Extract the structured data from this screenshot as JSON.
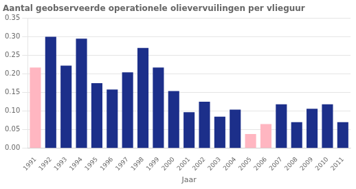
{
  "chart_data": {
    "type": "bar",
    "title": "Aantal geobserveerde operationele olievervuilingen per vlieguur",
    "xlabel": "Jaar",
    "categories": [
      "1991",
      "1992",
      "1993",
      "1994",
      "1995",
      "1996",
      "1997",
      "1998",
      "1999",
      "2000",
      "2001",
      "2002",
      "2003",
      "2004",
      "2005",
      "2006",
      "2007",
      "2008",
      "2009",
      "2010",
      "2011"
    ],
    "values": [
      0.217,
      0.3,
      0.222,
      0.295,
      0.175,
      0.158,
      0.204,
      0.27,
      0.217,
      0.154,
      0.097,
      0.125,
      0.085,
      0.104,
      0.038,
      0.065,
      0.118,
      0.07,
      0.106,
      0.118,
      0.07
    ],
    "colors": [
      "#FFB6C1",
      "#1C2F8A",
      "#1C2F8A",
      "#1C2F8A",
      "#1C2F8A",
      "#1C2F8A",
      "#1C2F8A",
      "#1C2F8A",
      "#1C2F8A",
      "#1C2F8A",
      "#1C2F8A",
      "#1C2F8A",
      "#1C2F8A",
      "#1C2F8A",
      "#FFB6C1",
      "#FFB6C1",
      "#1C2F8A",
      "#1C2F8A",
      "#1C2F8A",
      "#1C2F8A",
      "#1C2F8A"
    ],
    "ylim": [
      0.0,
      0.35
    ],
    "yticks": [
      {
        "value": 0.0,
        "label": "0.00"
      },
      {
        "value": 0.05,
        "label": "0.05"
      },
      {
        "value": 0.1,
        "label": "0.10"
      },
      {
        "value": 0.15,
        "label": "0.15"
      },
      {
        "value": 0.2,
        "label": "0.20"
      },
      {
        "value": 0.25,
        "label": "0.25"
      },
      {
        "value": 0.3,
        "label": "0.30"
      },
      {
        "value": 0.35,
        "label": "0.35"
      }
    ],
    "grid": true
  }
}
